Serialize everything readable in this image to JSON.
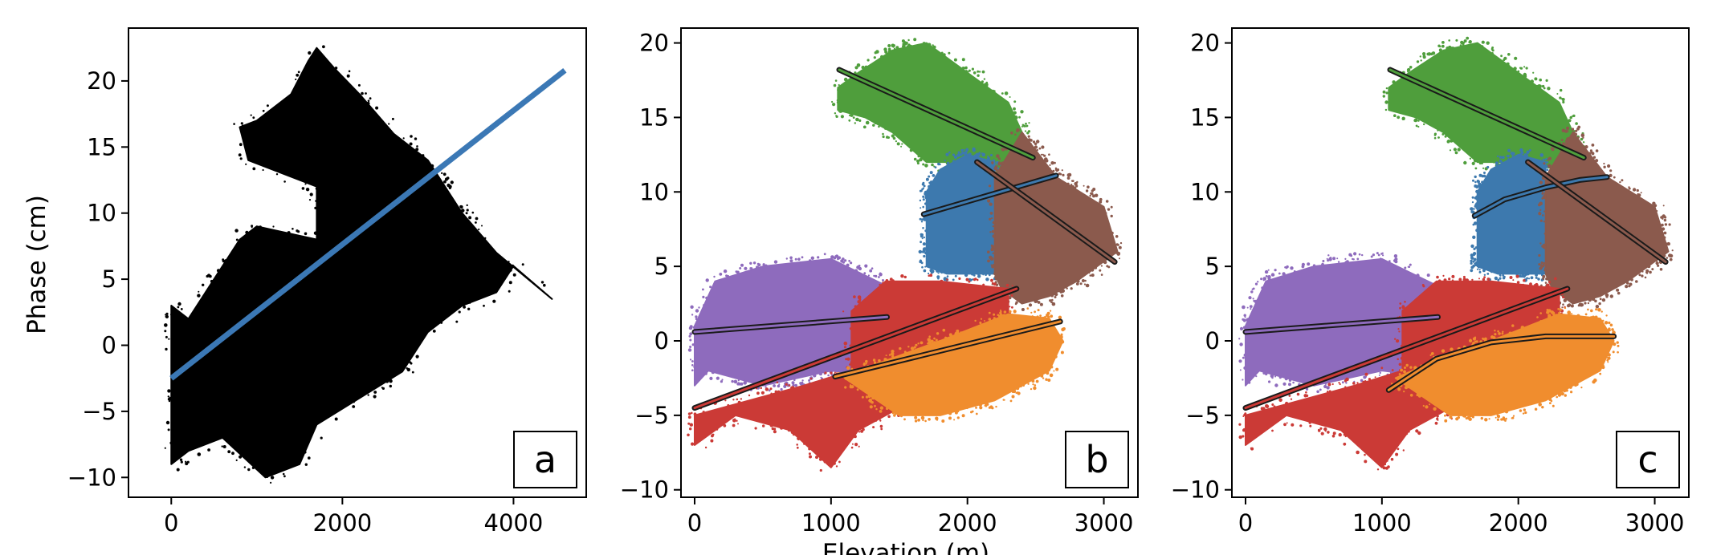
{
  "figure": {
    "ylabel": "Phase (cm)",
    "xlabel": "Elevation (m)"
  },
  "chart_data": [
    {
      "type": "scatter",
      "panel_label": "a",
      "xlim": [
        -500,
        4850
      ],
      "ylim": [
        -11.5,
        24
      ],
      "xticks": [
        0,
        2000,
        4000
      ],
      "yticks": [
        -10,
        -5,
        0,
        5,
        10,
        15,
        20
      ],
      "xtick_labels": [
        "0",
        "2000",
        "4000"
      ],
      "ytick_labels": [
        "−10",
        "−5",
        "0",
        "5",
        "10",
        "15",
        "20"
      ],
      "ylabel": "Phase (cm)",
      "xlabel": "",
      "grid": false,
      "clusters": [
        {
          "color": "#000000",
          "polygon": [
            [
              0,
              -9
            ],
            [
              200,
              -8
            ],
            [
              600,
              -7
            ],
            [
              1100,
              -10
            ],
            [
              1500,
              -9
            ],
            [
              1700,
              -6
            ],
            [
              2200,
              -4
            ],
            [
              2700,
              -2
            ],
            [
              3000,
              1
            ],
            [
              3400,
              3
            ],
            [
              3800,
              4
            ],
            [
              4000,
              6
            ],
            [
              4450,
              3.5
            ],
            [
              3800,
              7
            ],
            [
              3400,
              10
            ],
            [
              3000,
              14
            ],
            [
              2600,
              16
            ],
            [
              2200,
              19
            ],
            [
              1900,
              21
            ],
            [
              1700,
              22.5
            ],
            [
              1600,
              21.5
            ],
            [
              1400,
              19
            ],
            [
              1000,
              17
            ],
            [
              800,
              16.5
            ],
            [
              900,
              14
            ],
            [
              1700,
              12
            ],
            [
              1700,
              8
            ],
            [
              1000,
              9
            ],
            [
              800,
              8
            ],
            [
              500,
              5
            ],
            [
              200,
              2
            ],
            [
              0,
              3
            ]
          ]
        }
      ],
      "series": [
        {
          "color": "#3b78b5",
          "x": [
            0,
            4600
          ],
          "y": [
            -2.5,
            20.8
          ]
        }
      ]
    },
    {
      "type": "scatter",
      "panel_label": "b",
      "xlim": [
        -100,
        3250
      ],
      "ylim": [
        -10.5,
        21
      ],
      "xticks": [
        0,
        1000,
        2000,
        3000
      ],
      "yticks": [
        -10,
        -5,
        0,
        5,
        10,
        15,
        20
      ],
      "xtick_labels": [
        "0",
        "1000",
        "2000",
        "3000"
      ],
      "ytick_labels": [
        "−10",
        "−5",
        "0",
        "5",
        "10",
        "15",
        "20"
      ],
      "xlabel": "Elevation (m)",
      "grid": false,
      "clusters": [
        {
          "color": "#4f9e3c",
          "polygon": [
            [
              1050,
              17
            ],
            [
              1200,
              18
            ],
            [
              1450,
              19.5
            ],
            [
              1700,
              20
            ],
            [
              2000,
              18
            ],
            [
              2300,
              16
            ],
            [
              2450,
              13
            ],
            [
              2300,
              11.5
            ],
            [
              2000,
              12
            ],
            [
              1700,
              12
            ],
            [
              1450,
              14
            ],
            [
              1250,
              15
            ],
            [
              1050,
              15.5
            ]
          ]
        },
        {
          "color": "#3d79ae",
          "polygon": [
            [
              1700,
              5
            ],
            [
              1850,
              4.5
            ],
            [
              2200,
              4.5
            ],
            [
              2200,
              12
            ],
            [
              2000,
              12.5
            ],
            [
              1800,
              11.5
            ],
            [
              1700,
              10
            ]
          ]
        },
        {
          "color": "#8b5a4d",
          "polygon": [
            [
              2200,
              4.5
            ],
            [
              2200,
              11
            ],
            [
              2400,
              14
            ],
            [
              2650,
              11
            ],
            [
              3000,
              9
            ],
            [
              3100,
              6
            ],
            [
              2800,
              4
            ],
            [
              2600,
              3
            ],
            [
              2400,
              2.5
            ],
            [
              2250,
              3.5
            ]
          ]
        },
        {
          "color": "#8e6bbd",
          "polygon": [
            [
              0,
              -3
            ],
            [
              100,
              -2
            ],
            [
              500,
              -3
            ],
            [
              1000,
              -2
            ],
            [
              1450,
              -2.5
            ],
            [
              1450,
              3.5
            ],
            [
              1000,
              5.5
            ],
            [
              500,
              5
            ],
            [
              150,
              4
            ],
            [
              0,
              1
            ]
          ]
        },
        {
          "color": "#cb3a36",
          "polygon": [
            [
              0,
              -7
            ],
            [
              300,
              -5
            ],
            [
              700,
              -6
            ],
            [
              1000,
              -8.5
            ],
            [
              1200,
              -6
            ],
            [
              1500,
              -4.5
            ],
            [
              1800,
              -3
            ],
            [
              2100,
              -1
            ],
            [
              2300,
              0.5
            ],
            [
              2300,
              3.5
            ],
            [
              1800,
              4
            ],
            [
              1400,
              4
            ],
            [
              1150,
              2
            ],
            [
              1150,
              -2
            ],
            [
              800,
              -3
            ],
            [
              400,
              -4
            ],
            [
              0,
              -5
            ]
          ]
        },
        {
          "color": "#f08d2e",
          "polygon": [
            [
              1100,
              -2.5
            ],
            [
              1500,
              -5
            ],
            [
              1800,
              -5
            ],
            [
              2200,
              -4
            ],
            [
              2600,
              -2
            ],
            [
              2700,
              0
            ],
            [
              2600,
              1.5
            ],
            [
              2300,
              1.8
            ],
            [
              1800,
              0
            ],
            [
              1350,
              -1.5
            ]
          ]
        }
      ],
      "series": [
        {
          "color": "#4f9e3c",
          "x": [
            1060,
            2480
          ],
          "y": [
            18.2,
            12.3
          ]
        },
        {
          "color": "#3d79ae",
          "x": [
            1680,
            2650
          ],
          "y": [
            8.5,
            11.1
          ]
        },
        {
          "color": "#8b5a4d",
          "x": [
            2070,
            3080
          ],
          "y": [
            12.0,
            5.3
          ]
        },
        {
          "color": "#8e6bbd",
          "x": [
            0,
            1410
          ],
          "y": [
            0.6,
            1.6
          ]
        },
        {
          "color": "#cb3a36",
          "x": [
            0,
            2360
          ],
          "y": [
            -4.5,
            3.5
          ]
        },
        {
          "color": "#f08d2e",
          "x": [
            1030,
            2680
          ],
          "y": [
            -2.4,
            1.3
          ]
        }
      ]
    },
    {
      "type": "scatter",
      "panel_label": "c",
      "xlim": [
        -100,
        3250
      ],
      "ylim": [
        -10.5,
        21
      ],
      "xticks": [
        0,
        1000,
        2000,
        3000
      ],
      "yticks": [
        -10,
        -5,
        0,
        5,
        10,
        15,
        20
      ],
      "xtick_labels": [
        "0",
        "1000",
        "2000",
        "3000"
      ],
      "ytick_labels": [
        "−10",
        "−5",
        "0",
        "5",
        "10",
        "15",
        "20"
      ],
      "xlabel": "",
      "grid": false,
      "clusters": [
        {
          "color": "#4f9e3c",
          "polygon": [
            [
              1050,
              17
            ],
            [
              1200,
              18
            ],
            [
              1450,
              19.5
            ],
            [
              1700,
              20
            ],
            [
              2000,
              18
            ],
            [
              2300,
              16
            ],
            [
              2450,
              13
            ],
            [
              2300,
              11.5
            ],
            [
              2000,
              12
            ],
            [
              1700,
              12
            ],
            [
              1450,
              14
            ],
            [
              1250,
              15
            ],
            [
              1050,
              15.5
            ]
          ]
        },
        {
          "color": "#3d79ae",
          "polygon": [
            [
              1700,
              5
            ],
            [
              1850,
              4.5
            ],
            [
              2200,
              4.5
            ],
            [
              2200,
              12
            ],
            [
              2000,
              12.5
            ],
            [
              1800,
              11.5
            ],
            [
              1700,
              10
            ]
          ]
        },
        {
          "color": "#8b5a4d",
          "polygon": [
            [
              2200,
              4.5
            ],
            [
              2200,
              11
            ],
            [
              2400,
              14
            ],
            [
              2650,
              11
            ],
            [
              3000,
              9
            ],
            [
              3100,
              6
            ],
            [
              2800,
              4
            ],
            [
              2600,
              3
            ],
            [
              2400,
              2.5
            ],
            [
              2250,
              3.5
            ]
          ]
        },
        {
          "color": "#8e6bbd",
          "polygon": [
            [
              0,
              -3
            ],
            [
              100,
              -2
            ],
            [
              500,
              -3
            ],
            [
              1000,
              -2
            ],
            [
              1450,
              -2.5
            ],
            [
              1450,
              3.5
            ],
            [
              1000,
              5.5
            ],
            [
              500,
              5
            ],
            [
              150,
              4
            ],
            [
              0,
              1
            ]
          ]
        },
        {
          "color": "#cb3a36",
          "polygon": [
            [
              0,
              -7
            ],
            [
              300,
              -5
            ],
            [
              700,
              -6
            ],
            [
              1000,
              -8.5
            ],
            [
              1200,
              -6
            ],
            [
              1500,
              -4.5
            ],
            [
              1800,
              -3
            ],
            [
              2100,
              -1
            ],
            [
              2300,
              0.5
            ],
            [
              2300,
              3.5
            ],
            [
              1800,
              4
            ],
            [
              1400,
              4
            ],
            [
              1150,
              2
            ],
            [
              1150,
              -2
            ],
            [
              800,
              -3
            ],
            [
              400,
              -4
            ],
            [
              0,
              -5
            ]
          ]
        },
        {
          "color": "#f08d2e",
          "polygon": [
            [
              1100,
              -2.5
            ],
            [
              1500,
              -5
            ],
            [
              1800,
              -5
            ],
            [
              2200,
              -4
            ],
            [
              2600,
              -2
            ],
            [
              2700,
              0
            ],
            [
              2600,
              1.5
            ],
            [
              2300,
              1.8
            ],
            [
              1800,
              0
            ],
            [
              1350,
              -1.5
            ]
          ]
        }
      ],
      "series": [
        {
          "color": "#4f9e3c",
          "x": [
            1060,
            2480
          ],
          "y": [
            18.2,
            12.3
          ]
        },
        {
          "color": "#3d79ae",
          "x": [
            1680,
            1900,
            2200,
            2450,
            2650
          ],
          "y": [
            8.4,
            9.5,
            10.3,
            10.8,
            11.0
          ]
        },
        {
          "color": "#8b5a4d",
          "x": [
            2070,
            3080
          ],
          "y": [
            12.0,
            5.3
          ]
        },
        {
          "color": "#8e6bbd",
          "x": [
            0,
            1410
          ],
          "y": [
            0.6,
            1.6
          ]
        },
        {
          "color": "#cb3a36",
          "x": [
            0,
            2360
          ],
          "y": [
            -4.5,
            3.5
          ]
        },
        {
          "color": "#f08d2e",
          "x": [
            1050,
            1400,
            1800,
            2200,
            2700
          ],
          "y": [
            -3.3,
            -1.2,
            -0.1,
            0.3,
            0.3
          ]
        }
      ]
    }
  ]
}
